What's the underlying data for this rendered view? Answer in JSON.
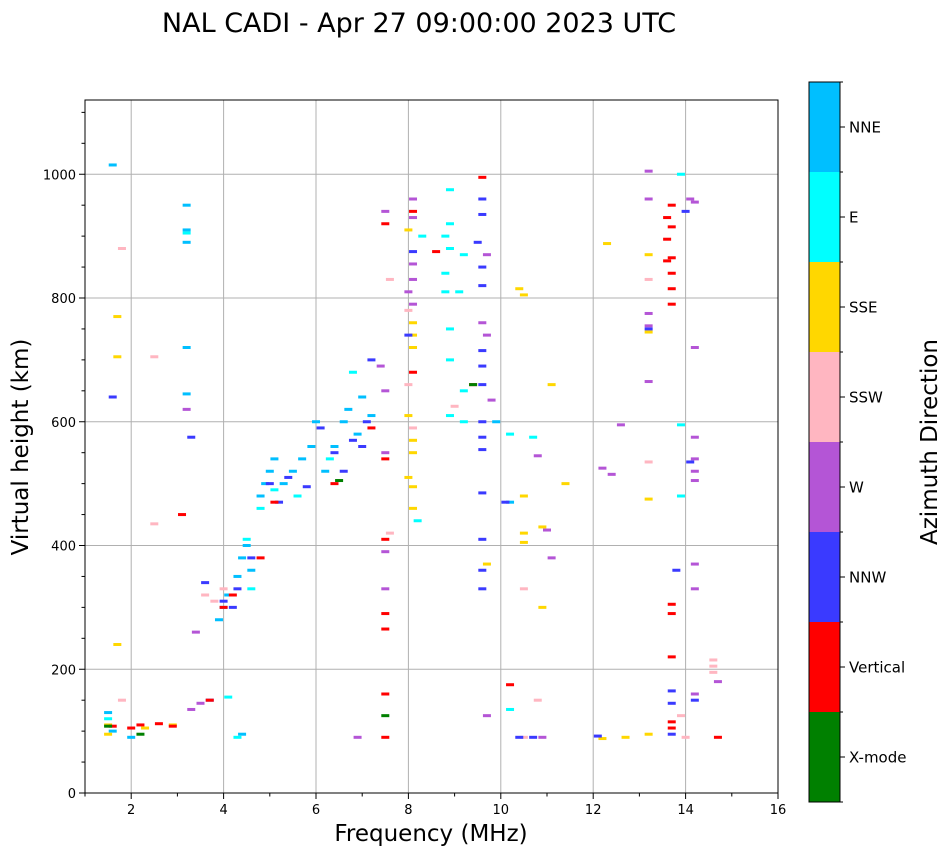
{
  "chart_data": {
    "type": "scatter",
    "title": "NAL CADI - Apr 27 09:00:00 2023 UTC",
    "xlabel": "Frequency (MHz)",
    "ylabel": "Virtual height (km)",
    "xlim": [
      1,
      16
    ],
    "ylim": [
      0,
      1120
    ],
    "xticks": [
      2,
      4,
      6,
      8,
      10,
      12,
      14,
      16
    ],
    "yticks": [
      0,
      200,
      400,
      600,
      800,
      1000
    ],
    "xtick_labels": [
      "2",
      "4",
      "6",
      "8",
      "10",
      "12",
      "14",
      "16"
    ],
    "ytick_labels": [
      "0",
      "200",
      "400",
      "600",
      "800",
      "1000"
    ],
    "grid": true,
    "colorbar": {
      "label": "Azimuth Direction",
      "categories": [
        {
          "name": "X-mode",
          "color": "#008000"
        },
        {
          "name": "Vertical",
          "color": "#ff0000"
        },
        {
          "name": "NNW",
          "color": "#3a3aff"
        },
        {
          "name": "W",
          "color": "#b455d6"
        },
        {
          "name": "SSW",
          "color": "#ffb6c1"
        },
        {
          "name": "SSE",
          "color": "#ffd700"
        },
        {
          "name": "E",
          "color": "#00ffff"
        },
        {
          "name": "NNE",
          "color": "#00bfff"
        }
      ]
    },
    "series": [
      {
        "name": "NNE",
        "points": [
          [
            1.6,
            1015
          ],
          [
            3.2,
            950
          ],
          [
            3.2,
            910
          ],
          [
            3.2,
            890
          ],
          [
            3.2,
            720
          ],
          [
            3.2,
            645
          ],
          [
            3.9,
            280
          ],
          [
            4.0,
            300
          ],
          [
            4.1,
            320
          ],
          [
            4.3,
            350
          ],
          [
            4.4,
            380
          ],
          [
            4.5,
            400
          ],
          [
            4.6,
            360
          ],
          [
            4.8,
            480
          ],
          [
            4.9,
            500
          ],
          [
            5.0,
            520
          ],
          [
            5.1,
            540
          ],
          [
            5.3,
            500
          ],
          [
            5.5,
            520
          ],
          [
            5.7,
            540
          ],
          [
            5.9,
            560
          ],
          [
            6.0,
            600
          ],
          [
            6.2,
            520
          ],
          [
            6.4,
            560
          ],
          [
            6.6,
            600
          ],
          [
            6.7,
            620
          ],
          [
            6.9,
            580
          ],
          [
            7.0,
            640
          ],
          [
            7.2,
            610
          ],
          [
            4.4,
            95
          ],
          [
            1.5,
            130
          ],
          [
            1.6,
            100
          ],
          [
            2.0,
            90
          ],
          [
            9.9,
            600
          ],
          [
            10.2,
            470
          ]
        ]
      },
      {
        "name": "E",
        "points": [
          [
            3.2,
            905
          ],
          [
            4.3,
            90
          ],
          [
            4.1,
            155
          ],
          [
            4.5,
            410
          ],
          [
            4.6,
            330
          ],
          [
            4.8,
            460
          ],
          [
            5.1,
            490
          ],
          [
            5.6,
            480
          ],
          [
            6.3,
            540
          ],
          [
            6.8,
            680
          ],
          [
            8.3,
            900
          ],
          [
            8.9,
            975
          ],
          [
            8.9,
            920
          ],
          [
            8.8,
            900
          ],
          [
            8.9,
            880
          ],
          [
            8.8,
            840
          ],
          [
            8.8,
            810
          ],
          [
            9.2,
            870
          ],
          [
            9.1,
            810
          ],
          [
            8.9,
            750
          ],
          [
            8.9,
            700
          ],
          [
            9.2,
            650
          ],
          [
            8.9,
            610
          ],
          [
            9.2,
            600
          ],
          [
            10.2,
            580
          ],
          [
            10.7,
            575
          ],
          [
            10.2,
            135
          ],
          [
            13.9,
            1000
          ],
          [
            13.9,
            595
          ],
          [
            13.9,
            480
          ],
          [
            8.2,
            440
          ],
          [
            1.5,
            120
          ]
        ]
      },
      {
        "name": "SSE",
        "points": [
          [
            1.7,
            770
          ],
          [
            1.7,
            705
          ],
          [
            1.7,
            240
          ],
          [
            1.5,
            110
          ],
          [
            1.5,
            95
          ],
          [
            2.3,
            105
          ],
          [
            2.9,
            110
          ],
          [
            8.0,
            910
          ],
          [
            8.1,
            760
          ],
          [
            8.1,
            740
          ],
          [
            8.1,
            720
          ],
          [
            8.0,
            610
          ],
          [
            8.1,
            570
          ],
          [
            8.1,
            550
          ],
          [
            8.0,
            510
          ],
          [
            8.1,
            495
          ],
          [
            8.1,
            460
          ],
          [
            9.7,
            370
          ],
          [
            10.4,
            815
          ],
          [
            10.5,
            805
          ],
          [
            10.5,
            480
          ],
          [
            10.5,
            420
          ],
          [
            10.9,
            430
          ],
          [
            10.5,
            405
          ],
          [
            10.9,
            300
          ],
          [
            11.1,
            660
          ],
          [
            11.4,
            500
          ],
          [
            12.3,
            888
          ],
          [
            13.2,
            870
          ],
          [
            13.2,
            745
          ],
          [
            13.2,
            475
          ],
          [
            13.2,
            95
          ],
          [
            12.7,
            90
          ],
          [
            12.2,
            88
          ]
        ]
      },
      {
        "name": "SSW",
        "points": [
          [
            1.8,
            880
          ],
          [
            2.5,
            705
          ],
          [
            2.5,
            435
          ],
          [
            1.8,
            150
          ],
          [
            7.6,
            830
          ],
          [
            8.0,
            780
          ],
          [
            8.0,
            660
          ],
          [
            8.1,
            590
          ],
          [
            7.6,
            420
          ],
          [
            9.0,
            625
          ],
          [
            10.5,
            330
          ],
          [
            10.8,
            150
          ],
          [
            10.5,
            90
          ],
          [
            13.2,
            830
          ],
          [
            13.2,
            535
          ],
          [
            13.9,
            125
          ],
          [
            14.6,
            215
          ],
          [
            14.6,
            205
          ],
          [
            14.6,
            195
          ],
          [
            14.0,
            90
          ],
          [
            3.6,
            320
          ],
          [
            3.8,
            310
          ],
          [
            4.0,
            330
          ]
        ]
      },
      {
        "name": "W",
        "points": [
          [
            3.2,
            620
          ],
          [
            3.3,
            135
          ],
          [
            3.4,
            260
          ],
          [
            3.5,
            145
          ],
          [
            7.5,
            940
          ],
          [
            8.1,
            960
          ],
          [
            8.1,
            930
          ],
          [
            8.1,
            855
          ],
          [
            8.1,
            830
          ],
          [
            8.0,
            810
          ],
          [
            8.1,
            790
          ],
          [
            7.4,
            690
          ],
          [
            7.5,
            650
          ],
          [
            7.5,
            550
          ],
          [
            7.5,
            390
          ],
          [
            7.5,
            330
          ],
          [
            9.7,
            870
          ],
          [
            9.6,
            760
          ],
          [
            9.7,
            740
          ],
          [
            9.8,
            635
          ],
          [
            9.7,
            125
          ],
          [
            10.8,
            545
          ],
          [
            11.0,
            425
          ],
          [
            11.1,
            380
          ],
          [
            12.4,
            515
          ],
          [
            12.6,
            595
          ],
          [
            13.2,
            1005
          ],
          [
            13.2,
            960
          ],
          [
            13.2,
            775
          ],
          [
            13.2,
            755
          ],
          [
            13.2,
            665
          ],
          [
            14.1,
            960
          ],
          [
            14.2,
            955
          ],
          [
            14.2,
            720
          ],
          [
            14.2,
            575
          ],
          [
            14.2,
            540
          ],
          [
            14.2,
            520
          ],
          [
            14.2,
            505
          ],
          [
            14.2,
            370
          ],
          [
            14.2,
            330
          ],
          [
            14.2,
            160
          ],
          [
            14.7,
            180
          ],
          [
            6.9,
            90
          ],
          [
            10.9,
            90
          ],
          [
            12.2,
            525
          ]
        ]
      },
      {
        "name": "NNW",
        "points": [
          [
            3.3,
            575
          ],
          [
            3.6,
            340
          ],
          [
            3.7,
            150
          ],
          [
            4.0,
            310
          ],
          [
            4.2,
            300
          ],
          [
            4.3,
            330
          ],
          [
            4.6,
            380
          ],
          [
            5.0,
            500
          ],
          [
            5.2,
            470
          ],
          [
            5.4,
            510
          ],
          [
            5.8,
            495
          ],
          [
            6.1,
            590
          ],
          [
            6.4,
            550
          ],
          [
            6.6,
            520
          ],
          [
            6.8,
            570
          ],
          [
            7.0,
            560
          ],
          [
            7.1,
            600
          ],
          [
            7.2,
            700
          ],
          [
            8.1,
            875
          ],
          [
            8.0,
            740
          ],
          [
            9.6,
            960
          ],
          [
            9.6,
            935
          ],
          [
            9.5,
            890
          ],
          [
            9.6,
            850
          ],
          [
            9.6,
            820
          ],
          [
            9.6,
            715
          ],
          [
            9.6,
            690
          ],
          [
            9.6,
            660
          ],
          [
            9.6,
            600
          ],
          [
            9.6,
            575
          ],
          [
            9.6,
            555
          ],
          [
            9.6,
            485
          ],
          [
            9.6,
            410
          ],
          [
            9.6,
            360
          ],
          [
            9.6,
            330
          ],
          [
            10.1,
            470
          ],
          [
            10.7,
            90
          ],
          [
            10.4,
            90
          ],
          [
            12.1,
            92
          ],
          [
            13.2,
            750
          ],
          [
            13.8,
            360
          ],
          [
            13.7,
            165
          ],
          [
            13.7,
            145
          ],
          [
            13.7,
            95
          ],
          [
            14.0,
            940
          ],
          [
            14.1,
            535
          ],
          [
            14.2,
            150
          ],
          [
            1.6,
            640
          ]
        ]
      },
      {
        "name": "Vertical",
        "points": [
          [
            3.1,
            450
          ],
          [
            3.7,
            150
          ],
          [
            4.0,
            300
          ],
          [
            4.2,
            320
          ],
          [
            4.8,
            380
          ],
          [
            5.1,
            470
          ],
          [
            6.4,
            500
          ],
          [
            7.2,
            590
          ],
          [
            7.5,
            920
          ],
          [
            7.5,
            540
          ],
          [
            7.5,
            410
          ],
          [
            7.5,
            290
          ],
          [
            7.5,
            265
          ],
          [
            7.5,
            160
          ],
          [
            7.5,
            90
          ],
          [
            8.1,
            940
          ],
          [
            8.1,
            680
          ],
          [
            8.6,
            875
          ],
          [
            9.4,
            660
          ],
          [
            9.6,
            995
          ],
          [
            10.2,
            175
          ],
          [
            1.6,
            108
          ],
          [
            2.0,
            105
          ],
          [
            2.2,
            110
          ],
          [
            2.6,
            112
          ],
          [
            2.9,
            108
          ],
          [
            13.7,
            950
          ],
          [
            13.6,
            930
          ],
          [
            13.7,
            915
          ],
          [
            13.6,
            895
          ],
          [
            13.7,
            865
          ],
          [
            13.6,
            860
          ],
          [
            13.7,
            840
          ],
          [
            13.7,
            815
          ],
          [
            13.7,
            790
          ],
          [
            13.7,
            305
          ],
          [
            13.7,
            290
          ],
          [
            13.7,
            220
          ],
          [
            13.7,
            115
          ],
          [
            13.7,
            105
          ],
          [
            14.7,
            90
          ]
        ]
      },
      {
        "name": "X-mode",
        "points": [
          [
            7.5,
            125
          ],
          [
            9.4,
            660
          ],
          [
            6.5,
            505
          ],
          [
            2.2,
            95
          ],
          [
            1.5,
            108
          ]
        ]
      }
    ]
  }
}
